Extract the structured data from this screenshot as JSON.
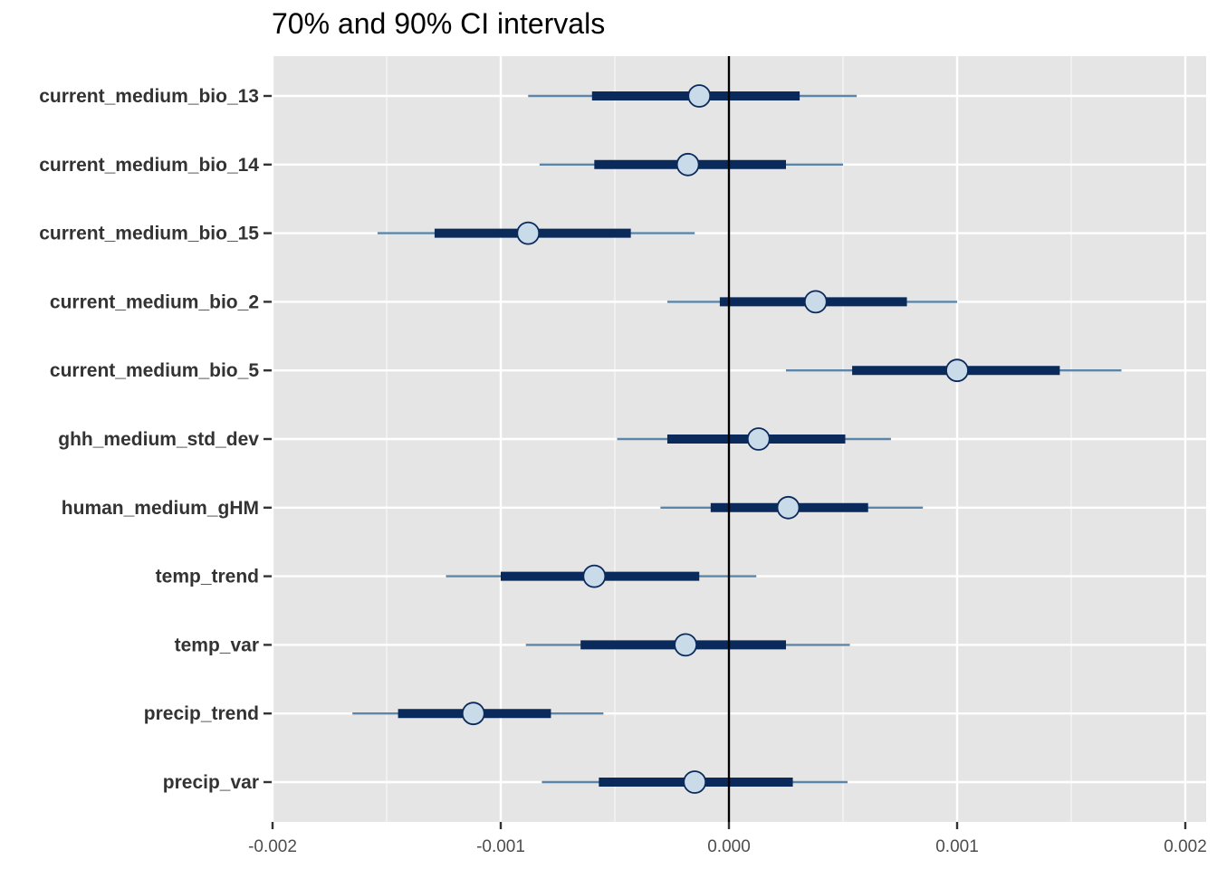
{
  "chart_data": {
    "type": "interval",
    "title": "70% and 90% CI intervals",
    "xlim": [
      -0.002,
      0.002
    ],
    "x_ticks": [
      "-0.002",
      "-0.001",
      "0.000",
      "0.001",
      "0.002"
    ],
    "x_tick_values": [
      -0.002,
      -0.001,
      0.0,
      0.001,
      0.002
    ],
    "reference_line": 0.0,
    "grid": true,
    "colors": {
      "panel": "#e5e5e5",
      "grid": "#ffffff",
      "inner_interval": "#0b2a5c",
      "outer_interval": "#5b86aa",
      "point_fill": "#c9dbe9",
      "point_stroke": "#0b2a5c",
      "reference": "#000000"
    },
    "series": [
      {
        "name": "current_medium_bio_13",
        "estimate": -0.00013,
        "inner": [
          -0.0006,
          0.00031
        ],
        "outer": [
          -0.00088,
          0.00056
        ]
      },
      {
        "name": "current_medium_bio_14",
        "estimate": -0.00018,
        "inner": [
          -0.00059,
          0.00025
        ],
        "outer": [
          -0.00083,
          0.0005
        ]
      },
      {
        "name": "current_medium_bio_15",
        "estimate": -0.00088,
        "inner": [
          -0.00129,
          -0.00043
        ],
        "outer": [
          -0.00154,
          -0.00015
        ]
      },
      {
        "name": "current_medium_bio_2",
        "estimate": 0.00038,
        "inner": [
          -4e-05,
          0.00078
        ],
        "outer": [
          -0.00027,
          0.001
        ]
      },
      {
        "name": "current_medium_bio_5",
        "estimate": 0.001,
        "inner": [
          0.00054,
          0.00145
        ],
        "outer": [
          0.00025,
          0.00172
        ]
      },
      {
        "name": "ghh_medium_std_dev",
        "estimate": 0.00013,
        "inner": [
          -0.00027,
          0.00051
        ],
        "outer": [
          -0.00049,
          0.00071
        ]
      },
      {
        "name": "human_medium_gHM",
        "estimate": 0.00026,
        "inner": [
          -8e-05,
          0.00061
        ],
        "outer": [
          -0.0003,
          0.00085
        ]
      },
      {
        "name": "temp_trend",
        "estimate": -0.00059,
        "inner": [
          -0.001,
          -0.00013
        ],
        "outer": [
          -0.00124,
          0.00012
        ]
      },
      {
        "name": "temp_var",
        "estimate": -0.00019,
        "inner": [
          -0.00065,
          0.00025
        ],
        "outer": [
          -0.00089,
          0.00053
        ]
      },
      {
        "name": "precip_trend",
        "estimate": -0.00112,
        "inner": [
          -0.00145,
          -0.00078
        ],
        "outer": [
          -0.00165,
          -0.00055
        ]
      },
      {
        "name": "precip_var",
        "estimate": -0.00015,
        "inner": [
          -0.00057,
          0.00028
        ],
        "outer": [
          -0.00082,
          0.00052
        ]
      }
    ]
  }
}
